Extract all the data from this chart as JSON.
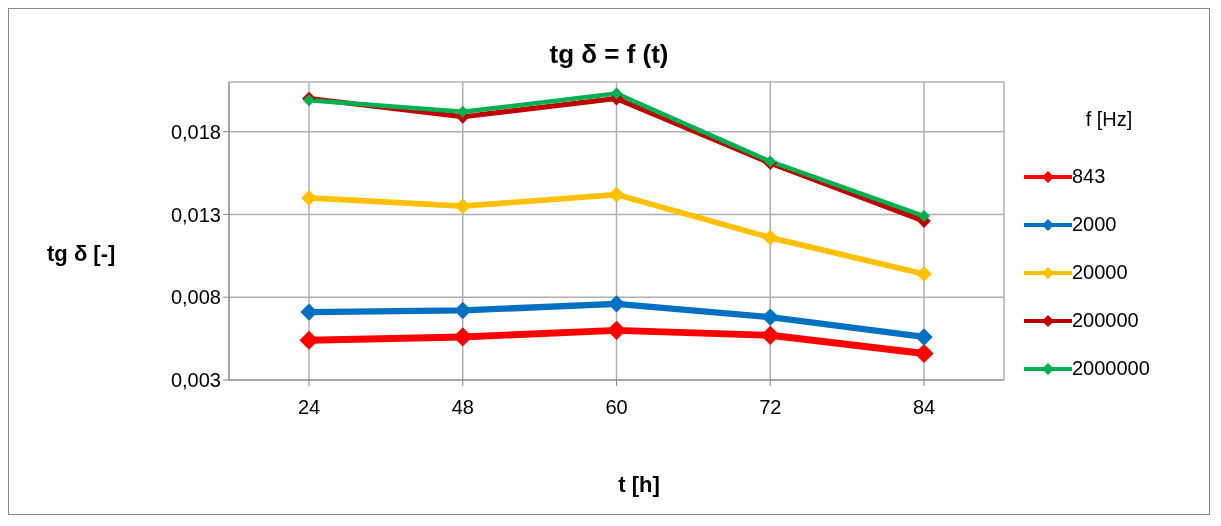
{
  "chart_data": {
    "type": "line",
    "title": "tg δ = f (t)",
    "xlabel": "t [h]",
    "ylabel": "tg δ [-]",
    "legend_title": "f [Hz]",
    "categories": [
      "24",
      "48",
      "60",
      "72",
      "84"
    ],
    "series": [
      {
        "name": "843",
        "color": "#ff0000",
        "values": [
          0.0054,
          0.0056,
          0.006,
          0.0057,
          0.0046
        ]
      },
      {
        "name": "2000",
        "color": "#0070c0",
        "values": [
          0.0071,
          0.0072,
          0.0076,
          0.0068,
          0.0056
        ]
      },
      {
        "name": "20000",
        "color": "#ffc000",
        "values": [
          0.014,
          0.0135,
          0.0142,
          0.0116,
          0.0094
        ]
      },
      {
        "name": "200000",
        "color": "#c00000",
        "values": [
          0.02,
          0.0189,
          0.02,
          0.0161,
          0.0126
        ]
      },
      {
        "name": "2000000",
        "color": "#00b050",
        "values": [
          0.0199,
          0.0192,
          0.0203,
          0.0162,
          0.0129
        ]
      }
    ],
    "ylim": [
      0.003,
      0.021
    ],
    "yticks": [
      {
        "value": 0.003,
        "label": "0,003"
      },
      {
        "value": 0.008,
        "label": "0,008"
      },
      {
        "value": 0.013,
        "label": "0,013"
      },
      {
        "value": 0.018,
        "label": "0,018"
      }
    ],
    "grid": true,
    "legend": "right",
    "marker": "diamond",
    "line_style": "solid"
  }
}
